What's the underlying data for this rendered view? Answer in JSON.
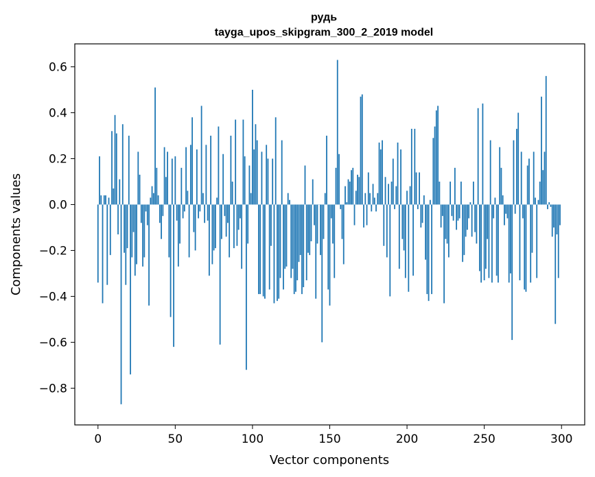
{
  "chart_data": {
    "type": "bar",
    "title": "рудь",
    "subtitle": "tayga_upos_skipgram_300_2_2019 model",
    "xlabel": "Vector components",
    "ylabel": "Components values",
    "xlim": [
      -15,
      315
    ],
    "ylim": [
      -0.96,
      0.7
    ],
    "xticks": [
      0,
      50,
      100,
      150,
      200,
      250,
      300
    ],
    "xtick_labels": [
      "0",
      "50",
      "100",
      "150",
      "200",
      "250",
      "300"
    ],
    "yticks": [
      -0.8,
      -0.6,
      -0.4,
      -0.2,
      0.0,
      0.2,
      0.4,
      0.6
    ],
    "ytick_labels": [
      "−0.8",
      "−0.6",
      "−0.4",
      "−0.2",
      "0.0",
      "0.2",
      "0.4",
      "0.6"
    ],
    "bar_color": "#1f77b4",
    "grid": false,
    "legend": "none",
    "x": [
      0,
      1,
      2,
      3,
      4,
      5,
      6,
      7,
      8,
      9,
      10,
      11,
      12,
      13,
      14,
      15,
      16,
      17,
      18,
      19,
      20,
      21,
      22,
      23,
      24,
      25,
      26,
      27,
      28,
      29,
      30,
      31,
      32,
      33,
      34,
      35,
      36,
      37,
      38,
      39,
      40,
      41,
      42,
      43,
      44,
      45,
      46,
      47,
      48,
      49,
      50,
      51,
      52,
      53,
      54,
      55,
      56,
      57,
      58,
      59,
      60,
      61,
      62,
      63,
      64,
      65,
      66,
      67,
      68,
      69,
      70,
      71,
      72,
      73,
      74,
      75,
      76,
      77,
      78,
      79,
      80,
      81,
      82,
      83,
      84,
      85,
      86,
      87,
      88,
      89,
      90,
      91,
      92,
      93,
      94,
      95,
      96,
      97,
      98,
      99,
      100,
      101,
      102,
      103,
      104,
      105,
      106,
      107,
      108,
      109,
      110,
      111,
      112,
      113,
      114,
      115,
      116,
      117,
      118,
      119,
      120,
      121,
      122,
      123,
      124,
      125,
      126,
      127,
      128,
      129,
      130,
      131,
      132,
      133,
      134,
      135,
      136,
      137,
      138,
      139,
      140,
      141,
      142,
      143,
      144,
      145,
      146,
      147,
      148,
      149,
      150,
      151,
      152,
      153,
      154,
      155,
      156,
      157,
      158,
      159,
      160,
      161,
      162,
      163,
      164,
      165,
      166,
      167,
      168,
      169,
      170,
      171,
      172,
      173,
      174,
      175,
      176,
      177,
      178,
      179,
      180,
      181,
      182,
      183,
      184,
      185,
      186,
      187,
      188,
      189,
      190,
      191,
      192,
      193,
      194,
      195,
      196,
      197,
      198,
      199,
      200,
      201,
      202,
      203,
      204,
      205,
      206,
      207,
      208,
      209,
      210,
      211,
      212,
      213,
      214,
      215,
      216,
      217,
      218,
      219,
      220,
      221,
      222,
      223,
      224,
      225,
      226,
      227,
      228,
      229,
      230,
      231,
      232,
      233,
      234,
      235,
      236,
      237,
      238,
      239,
      240,
      241,
      242,
      243,
      244,
      245,
      246,
      247,
      248,
      249,
      250,
      251,
      252,
      253,
      254,
      255,
      256,
      257,
      258,
      259,
      260,
      261,
      262,
      263,
      264,
      265,
      266,
      267,
      268,
      269,
      270,
      271,
      272,
      273,
      274,
      275,
      276,
      277,
      278,
      279,
      280,
      281,
      282,
      283,
      284,
      285,
      286,
      287,
      288,
      289,
      290,
      291,
      292,
      293,
      294,
      295,
      296,
      297,
      298,
      299
    ],
    "values": [
      -0.34,
      0.21,
      0.04,
      -0.43,
      0.04,
      0.04,
      -0.35,
      0.03,
      -0.22,
      0.32,
      0.07,
      0.39,
      0.31,
      -0.13,
      0.11,
      -0.87,
      0.35,
      -0.21,
      -0.35,
      -0.19,
      0.3,
      -0.74,
      -0.23,
      -0.12,
      -0.31,
      -0.26,
      0.23,
      0.13,
      -0.08,
      -0.27,
      -0.23,
      -0.03,
      -0.09,
      -0.44,
      0.03,
      0.08,
      0.05,
      0.51,
      0.16,
      0.04,
      -0.08,
      -0.15,
      -0.05,
      0.25,
      0.12,
      0.23,
      -0.23,
      -0.49,
      0.2,
      -0.62,
      0.21,
      -0.07,
      -0.27,
      -0.17,
      0.16,
      -0.06,
      -0.03,
      0.25,
      0.06,
      -0.23,
      0.26,
      0.38,
      -0.12,
      -0.2,
      0.24,
      -0.06,
      -0.03,
      0.43,
      0.05,
      -0.08,
      0.26,
      -0.07,
      -0.31,
      0.3,
      -0.26,
      -0.2,
      -0.19,
      0.03,
      0.34,
      -0.61,
      -0.15,
      0.22,
      -0.05,
      -0.14,
      -0.08,
      -0.23,
      0.3,
      0.1,
      -0.19,
      0.37,
      -0.18,
      -0.11,
      -0.06,
      -0.28,
      0.37,
      0.21,
      -0.72,
      -0.17,
      0.17,
      0.05,
      0.5,
      0.24,
      0.35,
      0.28,
      -0.39,
      -0.39,
      0.23,
      -0.4,
      -0.41,
      0.26,
      0.2,
      -0.37,
      -0.18,
      0.2,
      -0.43,
      0.38,
      -0.42,
      -0.41,
      -0.32,
      0.28,
      -0.37,
      -0.28,
      -0.27,
      0.05,
      0.02,
      -0.32,
      -0.28,
      -0.39,
      -0.38,
      -0.33,
      -0.25,
      -0.22,
      -0.39,
      -0.36,
      0.17,
      -0.33,
      -0.21,
      -0.22,
      -0.16,
      0.11,
      -0.09,
      -0.41,
      -0.17,
      0.0,
      -0.22,
      -0.6,
      -0.15,
      0.05,
      0.3,
      -0.37,
      -0.44,
      -0.06,
      -0.17,
      -0.32,
      0.16,
      0.63,
      0.22,
      -0.02,
      -0.15,
      -0.26,
      0.08,
      0.01,
      0.11,
      0.1,
      0.15,
      0.16,
      -0.09,
      0.06,
      0.13,
      0.12,
      0.47,
      0.48,
      -0.1,
      0.05,
      -0.09,
      0.14,
      0.05,
      -0.03,
      0.09,
      0.03,
      -0.03,
      0.05,
      0.27,
      0.24,
      0.28,
      -0.18,
      0.12,
      -0.23,
      0.09,
      -0.4,
      0.1,
      0.2,
      -0.02,
      0.08,
      0.27,
      -0.28,
      0.24,
      -0.15,
      -0.2,
      -0.32,
      0.06,
      -0.38,
      0.08,
      0.33,
      -0.31,
      0.33,
      0.14,
      -0.02,
      0.14,
      -0.1,
      -0.08,
      0.04,
      -0.24,
      -0.39,
      -0.42,
      0.02,
      -0.39,
      0.29,
      0.34,
      0.41,
      0.43,
      0.1,
      -0.1,
      -0.05,
      -0.43,
      -0.15,
      -0.17,
      -0.23,
      0.1,
      -0.05,
      -0.07,
      0.16,
      -0.11,
      -0.07,
      -0.06,
      0.1,
      -0.25,
      -0.22,
      -0.14,
      -0.11,
      -0.06,
      0.01,
      -0.14,
      0.1,
      -0.12,
      -0.17,
      0.42,
      -0.29,
      -0.34,
      0.44,
      -0.33,
      -0.28,
      -0.15,
      -0.32,
      0.28,
      -0.34,
      -0.06,
      0.03,
      -0.31,
      -0.34,
      0.25,
      0.16,
      0.04,
      -0.09,
      -0.04,
      -0.06,
      -0.34,
      -0.3,
      -0.59,
      0.28,
      -0.04,
      0.33,
      0.4,
      -0.33,
      0.23,
      -0.06,
      -0.37,
      -0.38,
      0.17,
      0.2,
      -0.34,
      -0.21,
      0.23,
      0.03,
      -0.32,
      0.02,
      0.1,
      0.47,
      0.15,
      0.23,
      0.56,
      -0.02,
      0.01,
      -0.01,
      -0.14,
      -0.1,
      -0.52,
      -0.13,
      -0.32,
      -0.09
    ]
  }
}
